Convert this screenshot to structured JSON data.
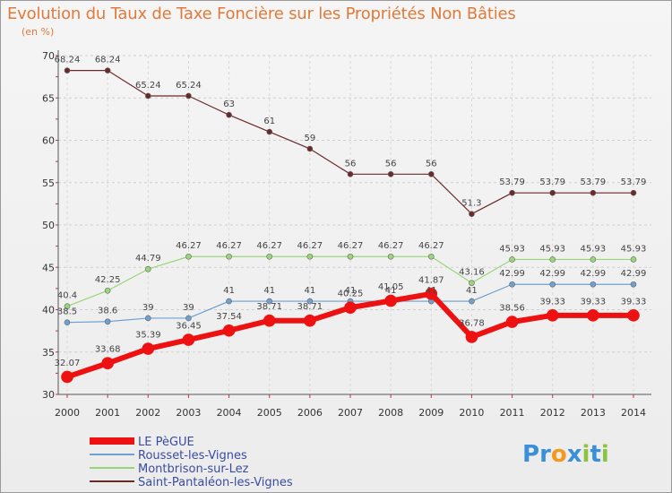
{
  "chart_data": {
    "type": "line",
    "title": "Evolution du Taux de Taxe Foncière sur les Propriétés Non Bâties",
    "unit_label": "(en %)",
    "x": [
      "2000",
      "2001",
      "2002",
      "2003",
      "2004",
      "2005",
      "2006",
      "2007",
      "2008",
      "2009",
      "2010",
      "2011",
      "2012",
      "2013",
      "2014"
    ],
    "ylim": [
      30,
      70
    ],
    "yticks": [
      30,
      35,
      40,
      45,
      50,
      55,
      60,
      65,
      70
    ],
    "grid": true,
    "legend_position": "bottom-left",
    "series": [
      {
        "name": "Saint-Pantaléon-les-Vignes",
        "color": "#6b2a2a",
        "values": [
          68.24,
          68.24,
          65.24,
          65.24,
          63,
          61,
          59,
          56,
          56,
          56,
          51.3,
          53.79,
          53.79,
          53.79,
          53.79
        ],
        "labels": [
          "68.24",
          "68.24",
          "65.24",
          "65.24",
          "63",
          "61",
          "59",
          "56",
          "56",
          "56",
          "51.3",
          "53.79",
          "53.79",
          "53.79",
          "53.79"
        ]
      },
      {
        "name": "Montbrison-sur-Lez",
        "color": "#99d67a",
        "values": [
          40.4,
          42.25,
          44.79,
          46.27,
          46.27,
          46.27,
          46.27,
          46.27,
          46.27,
          46.27,
          43.16,
          45.93,
          45.93,
          45.93,
          45.93
        ],
        "labels": [
          "40.4",
          "42.25",
          "44.79",
          "46.27",
          "46.27",
          "46.27",
          "46.27",
          "46.27",
          "46.27",
          "46.27",
          "43.16",
          "45.93",
          "45.93",
          "45.93",
          "45.93"
        ]
      },
      {
        "name": "Rousset-les-Vignes",
        "color": "#6ea0d0",
        "values": [
          38.5,
          38.6,
          39,
          39,
          41,
          41,
          41,
          41,
          41,
          41,
          41,
          42.99,
          42.99,
          42.99,
          42.99
        ],
        "labels": [
          "38.5",
          "38.6",
          "39",
          "39",
          "41",
          "41",
          "41",
          "41",
          "41",
          "41",
          "41",
          "42.99",
          "42.99",
          "42.99",
          "42.99"
        ]
      },
      {
        "name": "LE PèGUE",
        "color": "#ee1111",
        "values": [
          32.07,
          33.68,
          35.39,
          36.45,
          37.54,
          38.71,
          38.71,
          40.25,
          41.05,
          41.87,
          36.78,
          38.56,
          39.33,
          39.33,
          39.33
        ],
        "labels": [
          "32.07",
          "33.68",
          "35.39",
          "36.45",
          "37.54",
          "38.71",
          "38.71",
          "40.25",
          "41.05",
          "41.87",
          "36.78",
          "38.56",
          "39.33",
          "39.33",
          "39.33"
        ]
      }
    ],
    "legend_order": [
      "LE PèGUE",
      "Rousset-les-Vignes",
      "Montbrison-sur-Lez",
      "Saint-Pantaléon-les-Vignes"
    ]
  },
  "logo": {
    "text": "Proxiti",
    "letters": [
      "P",
      "r",
      "o",
      "x",
      "i",
      "t",
      "i"
    ],
    "colors": [
      "#3a8fd8",
      "#3a8fd8",
      "#f39a1e",
      "#3a8fd8",
      "#8bc53f",
      "#3a8fd8",
      "#8bc53f"
    ]
  }
}
